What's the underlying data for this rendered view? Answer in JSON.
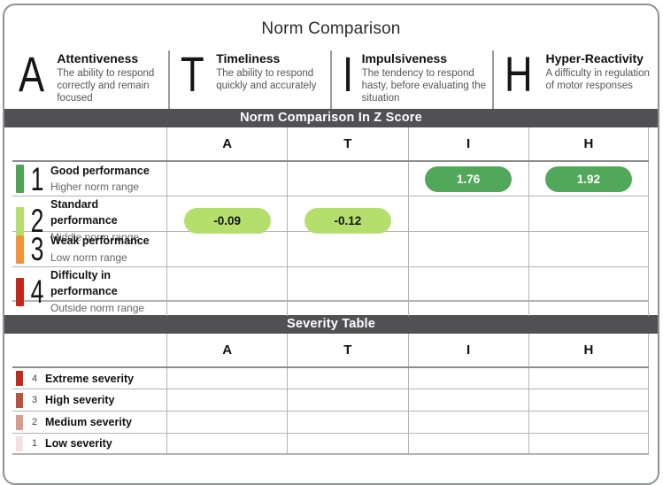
{
  "title": "Norm Comparison",
  "domains": [
    {
      "letter": "A",
      "name": "Attentiveness",
      "description": "The ability to respond correctly and remain focused"
    },
    {
      "letter": "T",
      "name": "Timeliness",
      "description": "The ability to respond quickly and accurately"
    },
    {
      "letter": "I",
      "name": "Impulsiveness",
      "description": "The tendency to respond hasty, before evaluating the situation"
    },
    {
      "letter": "H",
      "name": "Hyper-Reactivity",
      "description": "A difficulty in regulation of motor responses"
    }
  ],
  "z_score_section": {
    "header": "Norm Comparison In Z Score",
    "columns": [
      "A",
      "T",
      "I",
      "H"
    ],
    "rows": [
      {
        "number": "1",
        "label": "Good performance",
        "sublabel": "Higher norm range",
        "color": "#4da452"
      },
      {
        "number": "2",
        "label": "Standard performance",
        "sublabel": "Middle norm range",
        "color": "#b5df6d"
      },
      {
        "number": "3",
        "label": "Weak performance",
        "sublabel": "Low norm range",
        "color": "#f2943c"
      },
      {
        "number": "4",
        "label": "Difficulty in performance",
        "sublabel": "Outside norm range",
        "color": "#c5271b"
      }
    ],
    "values": [
      {
        "column": "A",
        "row_number": "2",
        "value": "-0.09",
        "bg": "#b5df6d",
        "fg": "#141414"
      },
      {
        "column": "T",
        "row_number": "2",
        "value": "-0.12",
        "bg": "#b5df6d",
        "fg": "#141414"
      },
      {
        "column": "I",
        "row_number": "1",
        "value": "1.76",
        "bg": "#52a85a",
        "fg": "#ffffff"
      },
      {
        "column": "H",
        "row_number": "1",
        "value": "1.92",
        "bg": "#52a85a",
        "fg": "#ffffff"
      }
    ]
  },
  "severity_section": {
    "header": "Severity Table",
    "columns": [
      "A",
      "T",
      "I",
      "H"
    ],
    "rows": [
      {
        "number": "4",
        "label": "Extreme severity",
        "color": "#bf2b1a"
      },
      {
        "number": "3",
        "label": "High severity",
        "color": "#bd5140"
      },
      {
        "number": "2",
        "label": "Medium severity",
        "color": "#d89c8c"
      },
      {
        "number": "1",
        "label": "Low severity",
        "color": "#f2e2dd"
      }
    ]
  },
  "colors": {
    "section_bar_bg": "#515153",
    "card_border": "#8f9193"
  }
}
